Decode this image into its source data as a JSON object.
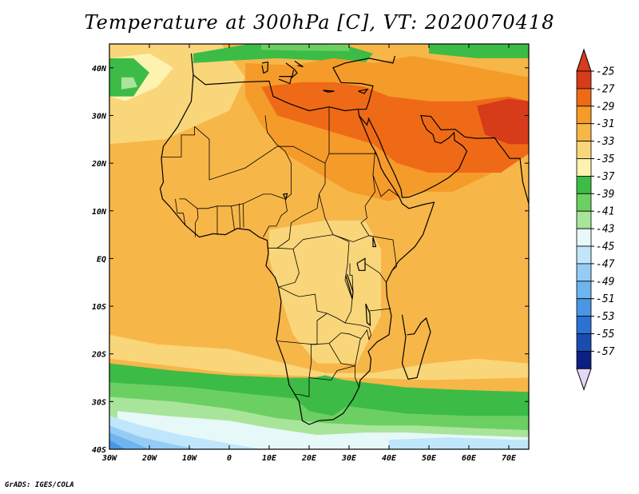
{
  "title": "Temperature at 300hPa [C], VT: 2020070418",
  "credit": "GrADS: IGES/COLA",
  "map": {
    "lon_range": [
      -30,
      75
    ],
    "lat_range": [
      -40,
      45
    ],
    "lon_ticks": [
      {
        "value": -30,
        "label": "30W"
      },
      {
        "value": -20,
        "label": "20W"
      },
      {
        "value": -10,
        "label": "10W"
      },
      {
        "value": 0,
        "label": "0"
      },
      {
        "value": 10,
        "label": "10E"
      },
      {
        "value": 20,
        "label": "20E"
      },
      {
        "value": 30,
        "label": "30E"
      },
      {
        "value": 40,
        "label": "40E"
      },
      {
        "value": 50,
        "label": "50E"
      },
      {
        "value": 60,
        "label": "60E"
      },
      {
        "value": 70,
        "label": "70E"
      }
    ],
    "lat_ticks": [
      {
        "value": 40,
        "label": "40N"
      },
      {
        "value": 30,
        "label": "30N"
      },
      {
        "value": 20,
        "label": "20N"
      },
      {
        "value": 10,
        "label": "10N"
      },
      {
        "value": 0,
        "label": "EQ"
      },
      {
        "value": -10,
        "label": "10S"
      },
      {
        "value": -20,
        "label": "20S"
      },
      {
        "value": -30,
        "label": "30S"
      },
      {
        "value": -40,
        "label": "40S"
      }
    ]
  },
  "colorbar": {
    "levels": [
      {
        "label": "-25",
        "color": "#d63b1a"
      },
      {
        "label": "-27",
        "color": "#ef6a16"
      },
      {
        "label": "-29",
        "color": "#f59b2a"
      },
      {
        "label": "-31",
        "color": "#f7b648"
      },
      {
        "label": "-33",
        "color": "#f9d67a"
      },
      {
        "label": "-35",
        "color": "#fdf2b0"
      },
      {
        "label": "-37",
        "color": "#3cbc46"
      },
      {
        "label": "-39",
        "color": "#6ccf62"
      },
      {
        "label": "-41",
        "color": "#a8e59a"
      },
      {
        "label": "-43",
        "color": "#e6f8f8"
      },
      {
        "label": "-45",
        "color": "#bfe6fa"
      },
      {
        "label": "-47",
        "color": "#95ccf5"
      },
      {
        "label": "-49",
        "color": "#6eb4ee"
      },
      {
        "label": "-51",
        "color": "#4a96e4"
      },
      {
        "label": "-53",
        "color": "#2a72d4"
      },
      {
        "label": "-55",
        "color": "#1a4cb2"
      },
      {
        "label": "-57",
        "color": "#0e1f82"
      }
    ],
    "top_color": "#d63b1a",
    "bottom_color": "#e2d8f8"
  }
}
